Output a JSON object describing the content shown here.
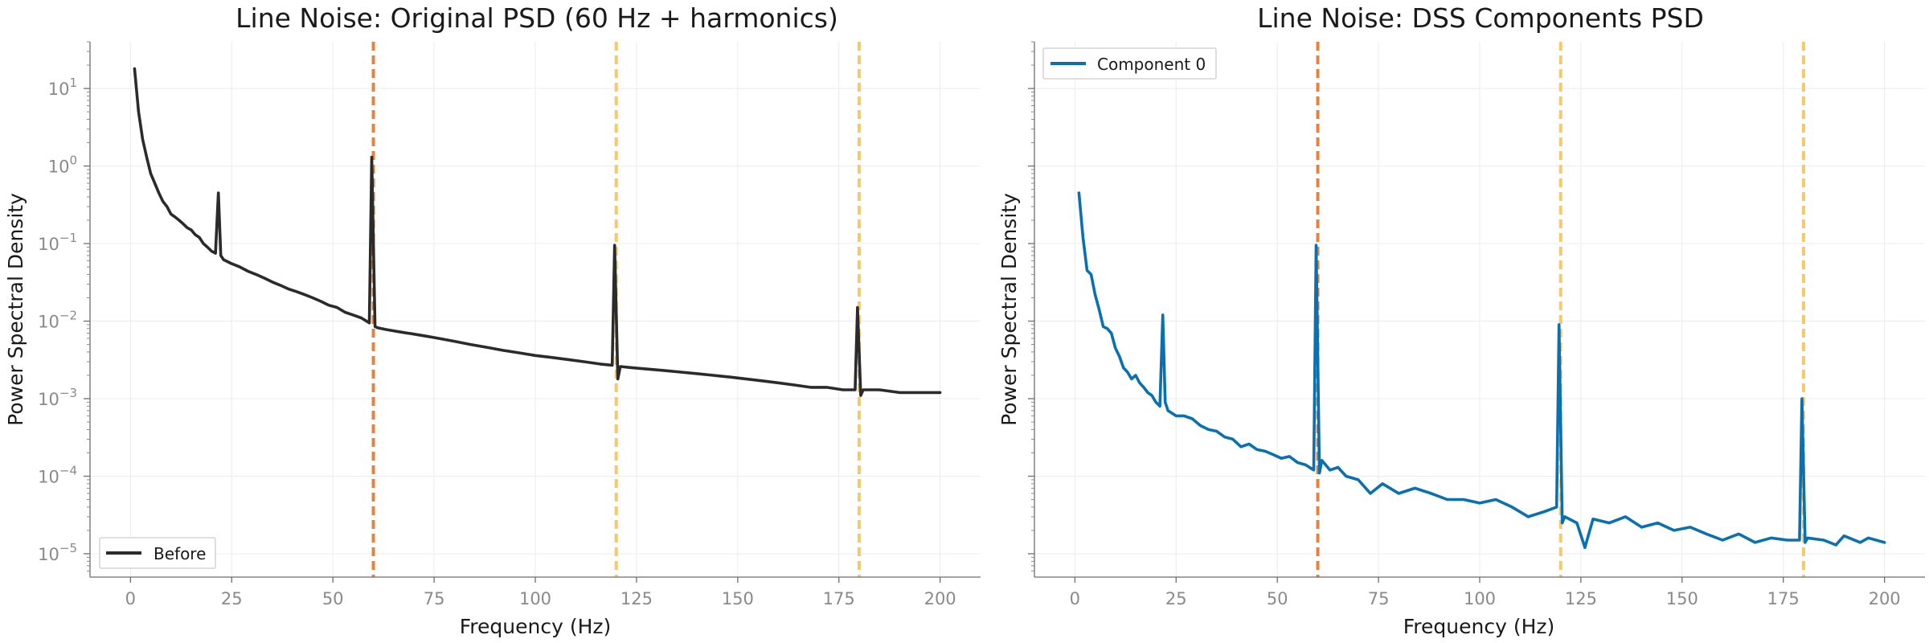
{
  "chart_data": [
    {
      "type": "line",
      "title": "Line Noise: Original PSD (60 Hz + harmonics)",
      "xlabel": "Frequency (Hz)",
      "ylabel": "Power Spectral Density",
      "yscale": "log",
      "xlim": [
        -10,
        210
      ],
      "ylim": [
        5e-06,
        40
      ],
      "xticks": [
        0,
        25,
        50,
        75,
        100,
        125,
        150,
        175,
        200
      ],
      "yticks": [
        1e-05,
        0.0001,
        0.001,
        0.01,
        0.1,
        1,
        10
      ],
      "ytick_labels": [
        {
          "base": "10",
          "exp": "−5"
        },
        {
          "base": "10",
          "exp": "−4"
        },
        {
          "base": "10",
          "exp": "−3"
        },
        {
          "base": "10",
          "exp": "−2"
        },
        {
          "base": "10",
          "exp": "−1"
        },
        {
          "base": "10",
          "exp": "0"
        },
        {
          "base": "10",
          "exp": "1"
        }
      ],
      "grid": true,
      "legend_position": "lower-left",
      "vlines": [
        {
          "x": 60,
          "color": "#e6823c"
        },
        {
          "x": 120,
          "color": "#f5c96a"
        },
        {
          "x": 180,
          "color": "#f5c96a"
        }
      ],
      "series": [
        {
          "name": "Before",
          "color": "#2b2b2b",
          "points": [
            [
              1,
              18
            ],
            [
              2,
              5
            ],
            [
              3,
              2.2
            ],
            [
              4,
              1.3
            ],
            [
              5,
              0.8
            ],
            [
              6,
              0.6
            ],
            [
              7,
              0.45
            ],
            [
              8,
              0.35
            ],
            [
              9,
              0.3
            ],
            [
              10,
              0.24
            ],
            [
              11,
              0.22
            ],
            [
              12,
              0.2
            ],
            [
              13,
              0.18
            ],
            [
              14,
              0.16
            ],
            [
              15,
              0.15
            ],
            [
              16,
              0.13
            ],
            [
              17,
              0.12
            ],
            [
              18,
              0.1
            ],
            [
              19,
              0.09
            ],
            [
              20,
              0.08
            ],
            [
              21,
              0.075
            ],
            [
              21.7,
              0.45
            ],
            [
              22.3,
              0.07
            ],
            [
              23,
              0.062
            ],
            [
              25,
              0.055
            ],
            [
              27,
              0.05
            ],
            [
              29,
              0.044
            ],
            [
              31,
              0.04
            ],
            [
              33,
              0.036
            ],
            [
              35,
              0.032
            ],
            [
              37,
              0.029
            ],
            [
              39,
              0.026
            ],
            [
              41,
              0.024
            ],
            [
              43,
              0.022
            ],
            [
              45,
              0.02
            ],
            [
              47,
              0.018
            ],
            [
              49,
              0.016
            ],
            [
              51,
              0.015
            ],
            [
              53,
              0.013
            ],
            [
              55,
              0.012
            ],
            [
              57,
              0.011
            ],
            [
              59,
              0.0095
            ],
            [
              59.6,
              1.3
            ],
            [
              60.4,
              0.0085
            ],
            [
              61,
              0.0082
            ],
            [
              63,
              0.0078
            ],
            [
              65,
              0.0075
            ],
            [
              67,
              0.0072
            ],
            [
              70,
              0.0068
            ],
            [
              73,
              0.0064
            ],
            [
              76,
              0.006
            ],
            [
              80,
              0.0055
            ],
            [
              84,
              0.005
            ],
            [
              88,
              0.0046
            ],
            [
              92,
              0.0042
            ],
            [
              96,
              0.0039
            ],
            [
              100,
              0.0036
            ],
            [
              104,
              0.0034
            ],
            [
              108,
              0.0032
            ],
            [
              112,
              0.003
            ],
            [
              116,
              0.0028
            ],
            [
              119,
              0.0027
            ],
            [
              119.6,
              0.095
            ],
            [
              120.4,
              0.0018
            ],
            [
              121,
              0.0026
            ],
            [
              124,
              0.0025
            ],
            [
              128,
              0.0024
            ],
            [
              132,
              0.0023
            ],
            [
              136,
              0.0022
            ],
            [
              140,
              0.0021
            ],
            [
              144,
              0.002
            ],
            [
              148,
              0.0019
            ],
            [
              152,
              0.0018
            ],
            [
              156,
              0.0017
            ],
            [
              160,
              0.0016
            ],
            [
              164,
              0.0015
            ],
            [
              168,
              0.0014
            ],
            [
              172,
              0.0014
            ],
            [
              176,
              0.0013
            ],
            [
              179,
              0.0013
            ],
            [
              179.6,
              0.015
            ],
            [
              180.4,
              0.0011
            ],
            [
              181,
              0.0013
            ],
            [
              185,
              0.0013
            ],
            [
              190,
              0.0012
            ],
            [
              195,
              0.0012
            ],
            [
              200,
              0.0012
            ]
          ]
        }
      ]
    },
    {
      "type": "line",
      "title": "Line Noise: DSS Components PSD",
      "xlabel": "Frequency (Hz)",
      "ylabel": "Power Spectral Density",
      "yscale": "log",
      "xlim": [
        -10,
        210
      ],
      "ylim": [
        5e-06,
        40
      ],
      "xticks": [
        0,
        25,
        50,
        75,
        100,
        125,
        150,
        175,
        200
      ],
      "grid": true,
      "legend_position": "upper-left",
      "vlines": [
        {
          "x": 60,
          "color": "#e6823c"
        },
        {
          "x": 120,
          "color": "#f5c96a"
        },
        {
          "x": 180,
          "color": "#f5c96a"
        }
      ],
      "series": [
        {
          "name": "Component 0",
          "color": "#0a70b0",
          "points": [
            [
              1,
              0.45
            ],
            [
              2,
              0.12
            ],
            [
              3,
              0.045
            ],
            [
              4,
              0.04
            ],
            [
              5,
              0.022
            ],
            [
              6,
              0.014
            ],
            [
              7,
              0.0085
            ],
            [
              8,
              0.008
            ],
            [
              9,
              0.007
            ],
            [
              10,
              0.0045
            ],
            [
              11,
              0.0035
            ],
            [
              12,
              0.0025
            ],
            [
              13,
              0.0022
            ],
            [
              14,
              0.0018
            ],
            [
              15,
              0.002
            ],
            [
              16,
              0.0016
            ],
            [
              17,
              0.0014
            ],
            [
              18,
              0.0012
            ],
            [
              19,
              0.0011
            ],
            [
              20,
              0.0009
            ],
            [
              21,
              0.0008
            ],
            [
              21.7,
              0.012
            ],
            [
              22.3,
              0.0009
            ],
            [
              23,
              0.0007
            ],
            [
              25,
              0.0006
            ],
            [
              27,
              0.0006
            ],
            [
              29,
              0.00055
            ],
            [
              31,
              0.00045
            ],
            [
              33,
              0.0004
            ],
            [
              35,
              0.00038
            ],
            [
              37,
              0.00032
            ],
            [
              39,
              0.0003
            ],
            [
              41,
              0.00024
            ],
            [
              43,
              0.00026
            ],
            [
              45,
              0.00022
            ],
            [
              47,
              0.00021
            ],
            [
              49,
              0.00019
            ],
            [
              51,
              0.00017
            ],
            [
              53,
              0.00018
            ],
            [
              55,
              0.00015
            ],
            [
              57,
              0.00014
            ],
            [
              59,
              0.00012
            ],
            [
              59.6,
              0.095
            ],
            [
              60.4,
              0.00011
            ],
            [
              61,
              0.00016
            ],
            [
              63,
              0.00012
            ],
            [
              65,
              0.00013
            ],
            [
              67,
              0.0001
            ],
            [
              70,
              9e-05
            ],
            [
              73,
              6e-05
            ],
            [
              76,
              8e-05
            ],
            [
              80,
              6e-05
            ],
            [
              84,
              7e-05
            ],
            [
              88,
              6e-05
            ],
            [
              92,
              5e-05
            ],
            [
              96,
              5e-05
            ],
            [
              100,
              4.5e-05
            ],
            [
              104,
              5e-05
            ],
            [
              108,
              4e-05
            ],
            [
              112,
              3e-05
            ],
            [
              116,
              3.5e-05
            ],
            [
              119,
              4e-05
            ],
            [
              119.6,
              0.009
            ],
            [
              120.4,
              2.5e-05
            ],
            [
              121,
              3e-05
            ],
            [
              124,
              2.5e-05
            ],
            [
              126,
              1.2e-05
            ],
            [
              128,
              2.8e-05
            ],
            [
              132,
              2.5e-05
            ],
            [
              136,
              3e-05
            ],
            [
              140,
              2.2e-05
            ],
            [
              144,
              2.5e-05
            ],
            [
              148,
              2e-05
            ],
            [
              152,
              2.2e-05
            ],
            [
              156,
              1.8e-05
            ],
            [
              160,
              1.5e-05
            ],
            [
              164,
              1.8e-05
            ],
            [
              168,
              1.4e-05
            ],
            [
              172,
              1.6e-05
            ],
            [
              176,
              1.5e-05
            ],
            [
              179,
              1.5e-05
            ],
            [
              179.6,
              0.001
            ],
            [
              180.4,
              1.4e-05
            ],
            [
              181,
              1.6e-05
            ],
            [
              185,
              1.5e-05
            ],
            [
              188,
              1.3e-05
            ],
            [
              190,
              1.7e-05
            ],
            [
              194,
              1.4e-05
            ],
            [
              196,
              1.6e-05
            ],
            [
              200,
              1.4e-05
            ]
          ]
        }
      ]
    }
  ]
}
